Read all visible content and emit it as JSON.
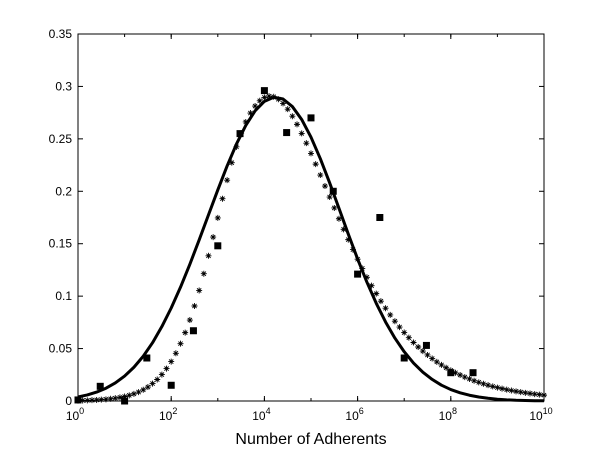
{
  "chart_data": {
    "type": "scatter",
    "title": "",
    "xlabel": "Number of Adherents",
    "ylabel": "",
    "x_scale": "log",
    "xlim": [
      1,
      10000000000
    ],
    "ylim": [
      0,
      0.35
    ],
    "grid": false,
    "legend": "none",
    "x_ticks": [
      {
        "value": 1,
        "base": "10",
        "exp": "0"
      },
      {
        "value": 100,
        "base": "10",
        "exp": "2"
      },
      {
        "value": 10000,
        "base": "10",
        "exp": "4"
      },
      {
        "value": 1000000,
        "base": "10",
        "exp": "6"
      },
      {
        "value": 100000000,
        "base": "10",
        "exp": "8"
      },
      {
        "value": 10000000000,
        "base": "10",
        "exp": "10"
      }
    ],
    "y_ticks": [
      {
        "value": 0,
        "label": "0"
      },
      {
        "value": 0.05,
        "label": "0.05"
      },
      {
        "value": 0.1,
        "label": "0.1"
      },
      {
        "value": 0.15,
        "label": "0.15"
      },
      {
        "value": 0.2,
        "label": "0.2"
      },
      {
        "value": 0.25,
        "label": "0.25"
      },
      {
        "value": 0.3,
        "label": "0.3"
      },
      {
        "value": 0.35,
        "label": "0.35"
      }
    ],
    "series": [
      {
        "marker": "square",
        "color": "#000000",
        "x": [
          1,
          3,
          10,
          30,
          100,
          300,
          1000,
          3000,
          10000,
          30000,
          100000,
          300000,
          1000000,
          3000000,
          10000000,
          30000000,
          100000000,
          300000000
        ],
        "y": [
          0.001,
          0.014,
          0.0,
          0.041,
          0.015,
          0.067,
          0.148,
          0.255,
          0.296,
          0.256,
          0.27,
          0.2,
          0.121,
          0.175,
          0.041,
          0.053,
          0.027,
          0.027
        ]
      },
      {
        "marker": "star",
        "color": "#000000",
        "x": [
          1,
          1.259,
          1.585,
          1.995,
          2.512,
          3.162,
          3.981,
          5.012,
          6.31,
          7.943,
          10,
          12.59,
          15.85,
          19.95,
          25.12,
          31.62,
          39.81,
          50.12,
          63.1,
          79.43,
          100,
          125.9,
          158.5,
          199.5,
          251.2,
          316.2,
          398.1,
          501.2,
          631,
          794.3,
          1000,
          1259,
          1585,
          1995,
          2512,
          3162,
          3981,
          5012,
          6310,
          7943,
          10000,
          12589,
          15849,
          19953,
          25119,
          31623,
          39811,
          50119,
          63096,
          79433,
          100000,
          125893,
          158489,
          199526,
          251189,
          316228,
          398107,
          501187,
          630957,
          794328,
          1000000,
          1258925,
          1584893,
          1995262,
          2511886,
          3162278,
          3981072,
          5011872,
          6309573,
          7943282,
          10000000,
          12589254,
          15848932,
          19952623,
          25118864,
          31622777,
          39810717,
          50118723,
          63095734,
          79432823,
          100000000,
          125892541,
          158489319,
          199526231,
          251188643,
          316227766,
          398107171,
          501187234,
          630957344,
          794328235,
          1000000000,
          1258925412,
          1584893192,
          1995262315,
          2511886432,
          3162277660,
          3981071706,
          5011872336,
          6309573445,
          7943282347,
          10000000000
        ],
        "y": [
          0.0004,
          0.0005,
          0.0006,
          0.0008,
          0.001,
          0.0013,
          0.0016,
          0.0021,
          0.0027,
          0.0034,
          0.0043,
          0.0054,
          0.0068,
          0.0085,
          0.0107,
          0.0133,
          0.0166,
          0.0205,
          0.0252,
          0.0309,
          0.0376,
          0.0455,
          0.0547,
          0.0652,
          0.0772,
          0.0906,
          0.1054,
          0.1214,
          0.1385,
          0.1563,
          0.1746,
          0.1929,
          0.2106,
          0.2273,
          0.2424,
          0.2554,
          0.2661,
          0.2746,
          0.2813,
          0.2863,
          0.2895,
          0.2907,
          0.2901,
          0.2878,
          0.2838,
          0.2783,
          0.2716,
          0.2638,
          0.2552,
          0.2459,
          0.2361,
          0.2259,
          0.2155,
          0.205,
          0.1945,
          0.1841,
          0.1738,
          0.1637,
          0.1539,
          0.1444,
          0.1352,
          0.1264,
          0.118,
          0.11,
          0.1024,
          0.0952,
          0.0885,
          0.0821,
          0.0761,
          0.0705,
          0.0653,
          0.0604,
          0.0558,
          0.0515,
          0.0476,
          0.0439,
          0.0405,
          0.0373,
          0.0344,
          0.0317,
          0.0292,
          0.0269,
          0.0248,
          0.0228,
          0.021,
          0.0193,
          0.0178,
          0.0164,
          0.0151,
          0.0139,
          0.0128,
          0.0118,
          0.0108,
          0.01,
          0.0092,
          0.0085,
          0.0078,
          0.0072,
          0.0066,
          0.0061,
          0.0056
        ]
      },
      {
        "marker": "line",
        "color": "#000000",
        "x": [
          1,
          1.585,
          2.512,
          3.981,
          6.31,
          10,
          15.85,
          25.12,
          39.81,
          63.1,
          100,
          158.5,
          251.2,
          398.1,
          631,
          1000,
          1585,
          2512,
          3981,
          6310,
          10000,
          15849,
          25119,
          39811,
          63096,
          100000,
          158489,
          251189,
          398107,
          630957,
          1000000,
          1584893,
          2511886,
          3981072,
          6309573,
          10000000,
          15848932,
          25118864,
          39810717,
          63095734,
          100000000,
          158489319,
          251188643,
          398107171,
          630957344,
          1000000000,
          1584893192,
          2511886432,
          3981071706,
          6309573445,
          10000000000
        ],
        "y": [
          0.0039,
          0.0058,
          0.0085,
          0.0122,
          0.0172,
          0.0238,
          0.0322,
          0.0427,
          0.0556,
          0.071,
          0.0887,
          0.1086,
          0.1304,
          0.1536,
          0.1775,
          0.2013,
          0.2242,
          0.245,
          0.2628,
          0.2767,
          0.2858,
          0.2897,
          0.288,
          0.2808,
          0.2685,
          0.2516,
          0.2311,
          0.2081,
          0.1838,
          0.1592,
          0.1355,
          0.1133,
          0.0932,
          0.0754,
          0.06,
          0.047,
          0.0362,
          0.0275,
          0.0206,
          0.0151,
          0.0109,
          0.0078,
          0.0055,
          0.0038,
          0.0026,
          0.0017,
          0.0011,
          0.0007,
          0.0005,
          0.0003,
          0.0002
        ]
      }
    ]
  }
}
